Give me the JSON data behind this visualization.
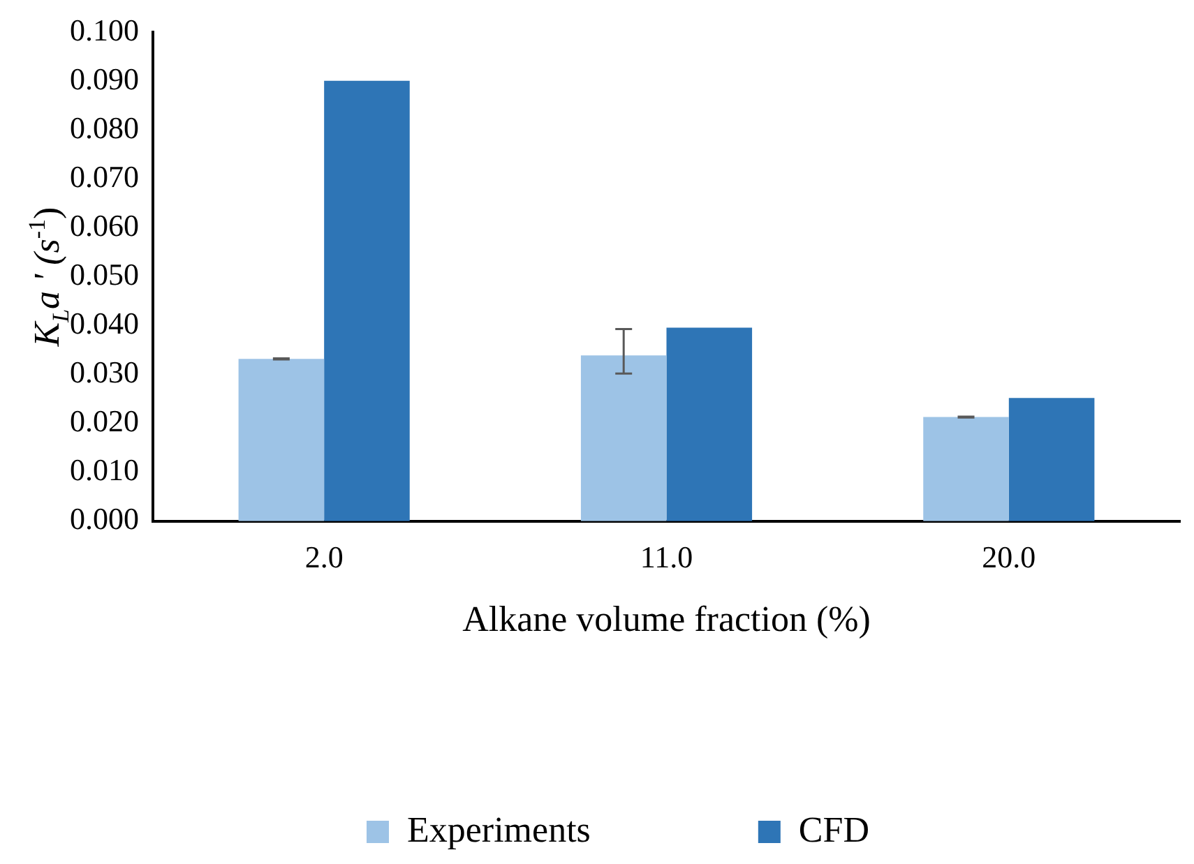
{
  "chart_data": {
    "type": "bar",
    "xlabel": "Alkane volume fraction (%)",
    "ylabel": "K$_{L}$a ' (s$^{-1}$)",
    "categories": [
      "2.0",
      "11.0",
      "20.0"
    ],
    "series": [
      {
        "name": "Experiments",
        "color": "#9dc3e6",
        "values": [
          0.0332,
          0.0339,
          0.0213
        ],
        "errors": [
          0.0001,
          [
            0.0302,
            0.0393
          ],
          0.0001
        ]
      },
      {
        "name": "CFD",
        "color": "#2e75b6",
        "values": [
          0.0901,
          0.0396,
          0.0252
        ]
      }
    ],
    "ylim": [
      0,
      0.1
    ],
    "yticks": [
      {
        "value": 0,
        "label": "0.000"
      },
      {
        "value": 0.01,
        "label": "0.010"
      },
      {
        "value": 0.02,
        "label": "0.020"
      },
      {
        "value": 0.03,
        "label": "0.030"
      },
      {
        "value": 0.04,
        "label": "0.040"
      },
      {
        "value": 0.05,
        "label": "0.050"
      },
      {
        "value": 0.06,
        "label": "0.060"
      },
      {
        "value": 0.07,
        "label": "0.070"
      },
      {
        "value": 0.08,
        "label": "0.080"
      },
      {
        "value": 0.09,
        "label": "0.090"
      },
      {
        "value": 0.1,
        "label": "0.100"
      }
    ],
    "grid": false,
    "legend": "bottom"
  }
}
